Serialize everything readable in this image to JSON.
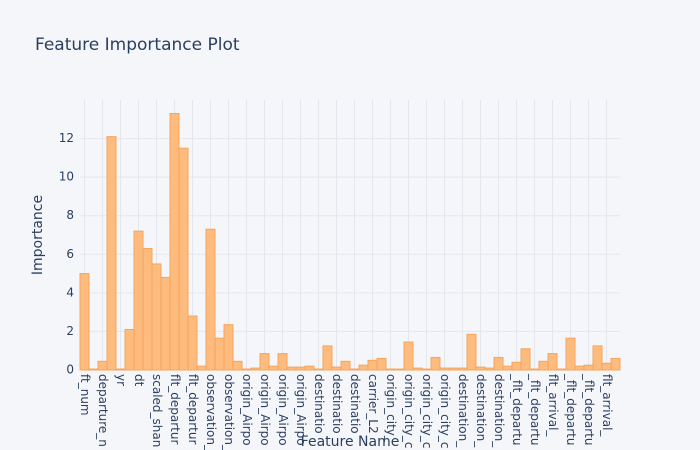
{
  "chart_data": {
    "type": "bar",
    "title": "Feature Importance Plot",
    "xlabel": "Feature Name",
    "ylabel": "Importance",
    "categories": [
      "ft_num",
      null,
      "departure_n",
      null,
      "yr",
      null,
      "dt",
      null,
      "scaled_shan",
      null,
      "flt_departur",
      null,
      "flt_departur",
      null,
      "observation_",
      null,
      "observation_",
      null,
      "origin_Airpo",
      null,
      "origin_Airpo",
      null,
      "origin_Airpo",
      null,
      "origin_Airpo",
      null,
      "destinatio",
      null,
      "destinatio",
      null,
      "destinatio",
      null,
      "carrier_L2",
      null,
      "origin_city_",
      null,
      "origin_city_c",
      null,
      "origin_city_c",
      null,
      "origin_city_c",
      null,
      "destination_",
      null,
      "destination_",
      null,
      "destination_",
      null,
      "_flt_departu",
      null,
      "_flt_departu",
      null,
      "flt_arrival_",
      null,
      "_flt_departu",
      null,
      "_flt_departu",
      null,
      "flt_arrival_",
      null
    ],
    "values": [
      5.0,
      0.05,
      0.45,
      12.1,
      0.05,
      2.1,
      7.2,
      6.3,
      5.5,
      4.8,
      13.3,
      11.5,
      2.8,
      0.2,
      7.3,
      1.65,
      2.35,
      0.45,
      0.05,
      0.1,
      0.85,
      0.2,
      0.85,
      0.15,
      0.15,
      0.2,
      0.05,
      1.25,
      0.15,
      0.45,
      0.05,
      0.25,
      0.5,
      0.6,
      0.05,
      0.05,
      1.45,
      0.1,
      0.05,
      0.65,
      0.1,
      0.1,
      0.1,
      1.85,
      0.15,
      0.1,
      0.65,
      0.2,
      0.4,
      1.1,
      0.05,
      0.45,
      0.85,
      0.05,
      1.65,
      0.2,
      0.25,
      1.25,
      0.35,
      0.6
    ],
    "color": "#fdbb7e",
    "ylim": [
      0,
      14
    ],
    "yticks": [
      0,
      2,
      4,
      6,
      8,
      10,
      12
    ],
    "grid": true
  }
}
